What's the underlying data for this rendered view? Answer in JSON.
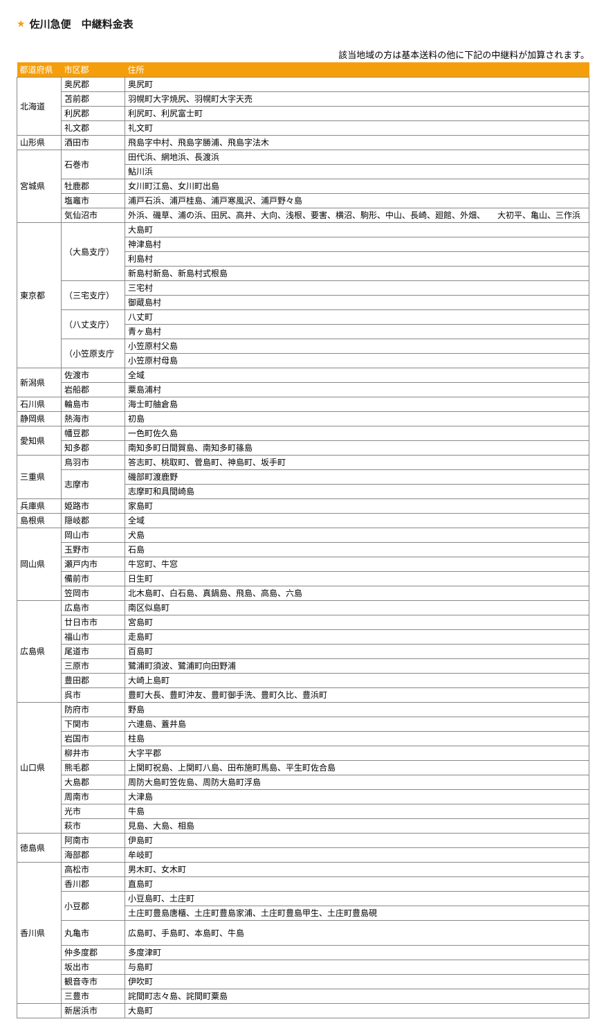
{
  "title": "佐川急便　中継料金表",
  "star": "★",
  "note": "該当地域の方は基本送料の他に下記の中継料が加算されます。",
  "columns": {
    "pref": "都道府県",
    "city": "市区郡",
    "addr": "住所"
  },
  "rows": [
    {
      "pref": "北海道",
      "pref_rs": 4,
      "city": "奥尻郡",
      "city_rs": 1,
      "addr": "奥尻町"
    },
    {
      "pref": null,
      "city": "苫前郡",
      "city_rs": 1,
      "addr": "羽幌町大字焼尻、羽幌町大字天売"
    },
    {
      "pref": null,
      "city": "利尻郡",
      "city_rs": 1,
      "addr": "利尻町、利尻富士町"
    },
    {
      "pref": null,
      "city": "礼文郡",
      "city_rs": 1,
      "addr": "礼文町"
    },
    {
      "pref": "山形県",
      "pref_rs": 1,
      "city": "酒田市",
      "city_rs": 1,
      "addr": "飛島字中村、飛島字勝浦、飛島字法木"
    },
    {
      "pref": "宮城県",
      "pref_rs": 5,
      "city": "石巻市",
      "city_rs": 2,
      "addr": "田代浜、網地浜、長渡浜"
    },
    {
      "pref": null,
      "city": null,
      "addr": "鮎川浜"
    },
    {
      "pref": null,
      "city": "牡鹿郡",
      "city_rs": 1,
      "addr": "女川町江島、女川町出島"
    },
    {
      "pref": null,
      "city": "塩竈市",
      "city_rs": 1,
      "addr": "浦戸石浜、浦戸桂島、浦戸寒風沢、浦戸野々島"
    },
    {
      "pref": null,
      "city": "気仙沼市",
      "city_rs": 1,
      "addr": "外浜、磯草、浦の浜、田尻、高井、大向、浅根、要害、横沼、駒形、中山、長崎、廻館、外畑、　　大初平、亀山、三作浜"
    },
    {
      "pref": "東京都",
      "pref_rs": 10,
      "city": "（大島支庁）",
      "city_rs": 4,
      "addr": "大島町"
    },
    {
      "pref": null,
      "city": null,
      "addr": "神津島村"
    },
    {
      "pref": null,
      "city": null,
      "addr": "利島村"
    },
    {
      "pref": null,
      "city": null,
      "addr": "新島村新島、新島村式根島"
    },
    {
      "pref": null,
      "city": "（三宅支庁）",
      "city_rs": 2,
      "addr": "三宅村"
    },
    {
      "pref": null,
      "city": null,
      "addr": "御蔵島村"
    },
    {
      "pref": null,
      "city": "（八丈支庁）",
      "city_rs": 2,
      "addr": "八丈町"
    },
    {
      "pref": null,
      "city": null,
      "addr": "青ヶ島村"
    },
    {
      "pref": null,
      "city": "（小笠原支庁",
      "city_rs": 2,
      "addr": "小笠原村父島"
    },
    {
      "pref": null,
      "city": null,
      "addr": "小笠原村母島"
    },
    {
      "pref": "新潟県",
      "pref_rs": 2,
      "city": "佐渡市",
      "city_rs": 1,
      "addr": "全域"
    },
    {
      "pref": null,
      "city": "岩船郡",
      "city_rs": 1,
      "addr": "粟島浦村"
    },
    {
      "pref": "石川県",
      "pref_rs": 1,
      "city": "輪島市",
      "city_rs": 1,
      "addr": "海士町舳倉島"
    },
    {
      "pref": "静岡県",
      "pref_rs": 1,
      "city": "熱海市",
      "city_rs": 1,
      "addr": "初島"
    },
    {
      "pref": "愛知県",
      "pref_rs": 2,
      "city": "幡豆郡",
      "city_rs": 1,
      "addr": "一色町佐久島"
    },
    {
      "pref": null,
      "city": "知多郡",
      "city_rs": 1,
      "addr": "南知多町日間賀島、南知多町篠島"
    },
    {
      "pref": "三重県",
      "pref_rs": 3,
      "city": "鳥羽市",
      "city_rs": 1,
      "addr": "答志町、桃取町、菅島町、神島町、坂手町"
    },
    {
      "pref": null,
      "city": "志摩市",
      "city_rs": 2,
      "addr": "磯部町渡鹿野"
    },
    {
      "pref": null,
      "city": null,
      "addr": "志摩町和具間崎島"
    },
    {
      "pref": "兵庫県",
      "pref_rs": 1,
      "city": "姫路市",
      "city_rs": 1,
      "addr": "家島町"
    },
    {
      "pref": "島根県",
      "pref_rs": 1,
      "city": "隠岐郡",
      "city_rs": 1,
      "addr": "全域"
    },
    {
      "pref": "岡山県",
      "pref_rs": 5,
      "city": "岡山市",
      "city_rs": 1,
      "addr": "犬島"
    },
    {
      "pref": null,
      "city": "玉野市",
      "city_rs": 1,
      "addr": "石島"
    },
    {
      "pref": null,
      "city": "瀬戸内市",
      "city_rs": 1,
      "addr": "牛窓町、牛窓"
    },
    {
      "pref": null,
      "city": "備前市",
      "city_rs": 1,
      "addr": "日生町"
    },
    {
      "pref": null,
      "city": "笠岡市",
      "city_rs": 1,
      "addr": "北木島町、白石島、真鍋島、飛島、高島、六島"
    },
    {
      "pref": "広島県",
      "pref_rs": 7,
      "city": "広島市",
      "city_rs": 1,
      "addr": "南区似島町"
    },
    {
      "pref": null,
      "city": "廿日市市",
      "city_rs": 1,
      "addr": "宮島町"
    },
    {
      "pref": null,
      "city": "福山市",
      "city_rs": 1,
      "addr": "走島町"
    },
    {
      "pref": null,
      "city": "尾道市",
      "city_rs": 1,
      "addr": "百島町"
    },
    {
      "pref": null,
      "city": "三原市",
      "city_rs": 1,
      "addr": "鷺浦町須波、鷺浦町向田野浦"
    },
    {
      "pref": null,
      "city": "豊田郡",
      "city_rs": 1,
      "addr": "大崎上島町"
    },
    {
      "pref": null,
      "city": "呉市",
      "city_rs": 1,
      "addr": "豊町大長、豊町沖友、豊町御手洗、豊町久比、豊浜町"
    },
    {
      "pref": "山口県",
      "pref_rs": 9,
      "city": "防府市",
      "city_rs": 1,
      "addr": "野島"
    },
    {
      "pref": null,
      "city": "下関市",
      "city_rs": 1,
      "addr": "六連島、蓋井島"
    },
    {
      "pref": null,
      "city": "岩国市",
      "city_rs": 1,
      "addr": "柱島"
    },
    {
      "pref": null,
      "city": "柳井市",
      "city_rs": 1,
      "addr": "大字平郡"
    },
    {
      "pref": null,
      "city": "熊毛郡",
      "city_rs": 1,
      "addr": "上関町祝島、上関町八島、田布施町馬島、平生町佐合島"
    },
    {
      "pref": null,
      "city": "大島郡",
      "city_rs": 1,
      "addr": "周防大島町笠佐島、周防大島町浮島"
    },
    {
      "pref": null,
      "city": "周南市",
      "city_rs": 1,
      "addr": "大津島"
    },
    {
      "pref": null,
      "city": "光市",
      "city_rs": 1,
      "addr": "牛島"
    },
    {
      "pref": null,
      "city": "萩市",
      "city_rs": 1,
      "addr": "見島、大島、相島"
    },
    {
      "pref": "徳島県",
      "pref_rs": 2,
      "city": "阿南市",
      "city_rs": 1,
      "addr": "伊島町"
    },
    {
      "pref": null,
      "city": "海部郡",
      "city_rs": 1,
      "addr": "牟岐町"
    },
    {
      "pref": "香川県",
      "pref_rs": 9,
      "city": "高松市",
      "city_rs": 1,
      "addr": "男木町、女木町"
    },
    {
      "pref": null,
      "city": "香川郡",
      "city_rs": 1,
      "addr": "直島町"
    },
    {
      "pref": null,
      "city": "小豆郡",
      "city_rs": 2,
      "addr": "小豆島町、土庄町"
    },
    {
      "pref": null,
      "city": null,
      "addr": "土庄町豊島唐櫃、土庄町豊島家浦、土庄町豊島甲生、土庄町豊島硯"
    },
    {
      "pref": null,
      "city": "丸亀市",
      "city_rs": 1,
      "addr": "広島町、手島町、本島町、牛島",
      "tall": true
    },
    {
      "pref": null,
      "city": "仲多度郡",
      "city_rs": 1,
      "addr": "多度津町"
    },
    {
      "pref": null,
      "city": "坂出市",
      "city_rs": 1,
      "addr": "与島町"
    },
    {
      "pref": null,
      "city": "観音寺市",
      "city_rs": 1,
      "addr": "伊吹町"
    },
    {
      "pref": null,
      "city": "三豊市",
      "city_rs": 1,
      "addr": "詫間町志々島、詫間町粟島"
    },
    {
      "pref": "",
      "pref_rs": 1,
      "city": "新居浜市",
      "city_rs": 1,
      "addr": "大島町"
    }
  ]
}
